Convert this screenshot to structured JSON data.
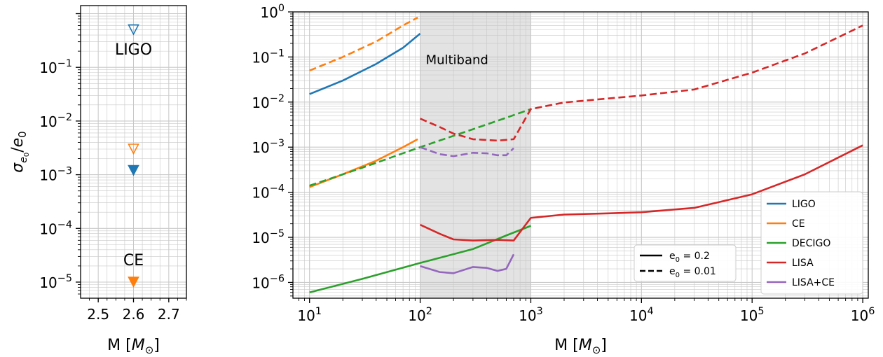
{
  "chart_data": [
    {
      "type": "scatter",
      "panel": "left",
      "xlabel": "M [M⊙]",
      "ylabel": "σe₀/e₀",
      "xlim": [
        2.45,
        2.75
      ],
      "ylim_log10": [
        -5.3,
        0.15
      ],
      "yscale": "log",
      "grid": true,
      "xticks": [
        2.5,
        2.6,
        2.7
      ],
      "xtick_labels": [
        "2.5",
        "2.6",
        "2.7"
      ],
      "yticks_log10": [
        -5,
        -4,
        -3,
        -2,
        -1
      ],
      "ytick_labels": [
        [
          "10",
          "−5"
        ],
        [
          "10",
          "−4"
        ],
        [
          "10",
          "−3"
        ],
        [
          "10",
          "−2"
        ],
        [
          "10",
          "−1"
        ]
      ],
      "points": [
        {
          "detector": "LIGO",
          "e0": 0.01,
          "x": 2.6,
          "y": 0.5,
          "marker": "open-down-triangle",
          "color": "#1f77b4"
        },
        {
          "detector": "CE",
          "e0": 0.01,
          "x": 2.6,
          "y": 0.003,
          "marker": "open-down-triangle",
          "color": "#ff7f0e"
        },
        {
          "detector": "LIGO",
          "e0": 0.2,
          "x": 2.6,
          "y": 0.0012,
          "marker": "filled-down-triangle",
          "color": "#1f77b4"
        },
        {
          "detector": "CE",
          "e0": 0.2,
          "x": 2.6,
          "y": 1e-05,
          "marker": "filled-down-triangle",
          "color": "#ff7f0e"
        }
      ],
      "annotations": [
        {
          "text": "LIGO",
          "x": 2.6,
          "y": 0.22
        },
        {
          "text": "CE",
          "x": 2.6,
          "y": 2.6e-05
        }
      ]
    },
    {
      "type": "line",
      "panel": "right",
      "xlabel": "M [M⊙]",
      "xscale": "log",
      "yscale": "log",
      "xlim_log10": [
        0.85,
        6.05
      ],
      "ylim_log10": [
        -6.35,
        0
      ],
      "grid": true,
      "xticks_log10": [
        1,
        2,
        3,
        4,
        5,
        6
      ],
      "xtick_labels": [
        [
          "10",
          "1"
        ],
        [
          "10",
          "2"
        ],
        [
          "10",
          "3"
        ],
        [
          "10",
          "4"
        ],
        [
          "10",
          "5"
        ],
        [
          "10",
          "6"
        ]
      ],
      "yticks_log10": [
        -6,
        -5,
        -4,
        -3,
        -2,
        -1,
        0
      ],
      "ytick_labels": [
        [
          "10",
          "−6"
        ],
        [
          "10",
          "−5"
        ],
        [
          "10",
          "−4"
        ],
        [
          "10",
          "−3"
        ],
        [
          "10",
          "−2"
        ],
        [
          "10",
          "−1"
        ],
        [
          "10",
          "0"
        ]
      ],
      "shaded_region": {
        "x": [
          100,
          1000
        ],
        "label": "Multiband"
      },
      "legend_detectors": {
        "position": "lower-right",
        "entries": [
          {
            "name": "LIGO",
            "color": "#1f77b4"
          },
          {
            "name": "CE",
            "color": "#ff7f0e"
          },
          {
            "name": "DECIGO",
            "color": "#2ca02c"
          },
          {
            "name": "LISA",
            "color": "#d62728"
          },
          {
            "name": "LISA+CE",
            "color": "#9467bd"
          }
        ]
      },
      "legend_styles": {
        "position": "lower-right-inner",
        "entries": [
          {
            "label_base": "e",
            "label_sub": "0",
            "label_tail": " = 0.2",
            "style": "solid"
          },
          {
            "label_base": "e",
            "label_sub": "0",
            "label_tail": " = 0.01",
            "style": "dashed"
          }
        ]
      },
      "series": [
        {
          "name": "LIGO",
          "color": "#1f77b4",
          "style": "solid",
          "x": [
            10,
            20,
            40,
            70,
            100
          ],
          "y": [
            0.015,
            0.03,
            0.07,
            0.16,
            0.33
          ]
        },
        {
          "name": "LIGO",
          "color": "#1f77b4",
          "style": "dashed",
          "x": [],
          "y": []
        },
        {
          "name": "CE",
          "color": "#ff7f0e",
          "style": "solid",
          "x": [
            10,
            20,
            40,
            70,
            95
          ],
          "y": [
            0.00013,
            0.00025,
            0.0005,
            0.001,
            0.0015
          ]
        },
        {
          "name": "CE",
          "color": "#ff7f0e",
          "style": "dashed",
          "x": [
            10,
            20,
            40,
            70,
            95
          ],
          "y": [
            0.05,
            0.1,
            0.22,
            0.5,
            0.75
          ]
        },
        {
          "name": "DECIGO",
          "color": "#2ca02c",
          "style": "solid",
          "x": [
            10,
            30,
            100,
            300,
            600,
            1000
          ],
          "y": [
            6e-07,
            1.2e-06,
            2.7e-06,
            5.5e-06,
            1.1e-05,
            1.8e-05
          ]
        },
        {
          "name": "DECIGO",
          "color": "#2ca02c",
          "style": "dashed",
          "x": [
            10,
            30,
            100,
            300,
            600,
            1000
          ],
          "y": [
            0.00014,
            0.00035,
            0.001,
            0.0025,
            0.0045,
            0.007
          ]
        },
        {
          "name": "LISA",
          "color": "#d62728",
          "style": "solid",
          "x": [
            100,
            150,
            200,
            300,
            500,
            700,
            1000,
            2000,
            5000,
            10000,
            30000,
            100000,
            300000,
            1000000
          ],
          "y": [
            1.9e-05,
            1.2e-05,
            9e-06,
            8.5e-06,
            8.8e-06,
            8.5e-06,
            2.7e-05,
            3.2e-05,
            3.4e-05,
            3.6e-05,
            4.5e-05,
            9e-05,
            0.00025,
            0.0011
          ]
        },
        {
          "name": "LISA",
          "color": "#d62728",
          "style": "dashed",
          "x": [
            100,
            150,
            200,
            300,
            500,
            700,
            1000,
            2000,
            5000,
            10000,
            30000,
            100000,
            300000,
            1000000
          ],
          "y": [
            0.0043,
            0.0028,
            0.002,
            0.0015,
            0.0014,
            0.0015,
            0.007,
            0.0098,
            0.012,
            0.014,
            0.019,
            0.045,
            0.12,
            0.5
          ]
        },
        {
          "name": "LISA+CE",
          "color": "#9467bd",
          "style": "solid",
          "x": [
            100,
            150,
            200,
            300,
            400,
            500,
            600,
            700
          ],
          "y": [
            2.3e-06,
            1.7e-06,
            1.6e-06,
            2.2e-06,
            2.1e-06,
            1.8e-06,
            2e-06,
            4.2e-06
          ]
        },
        {
          "name": "LISA+CE",
          "color": "#9467bd",
          "style": "dashed",
          "x": [
            100,
            150,
            200,
            300,
            400,
            500,
            600,
            700
          ],
          "y": [
            0.001,
            0.0007,
            0.00063,
            0.00075,
            0.00073,
            0.00066,
            0.00066,
            0.00095
          ]
        }
      ]
    }
  ]
}
